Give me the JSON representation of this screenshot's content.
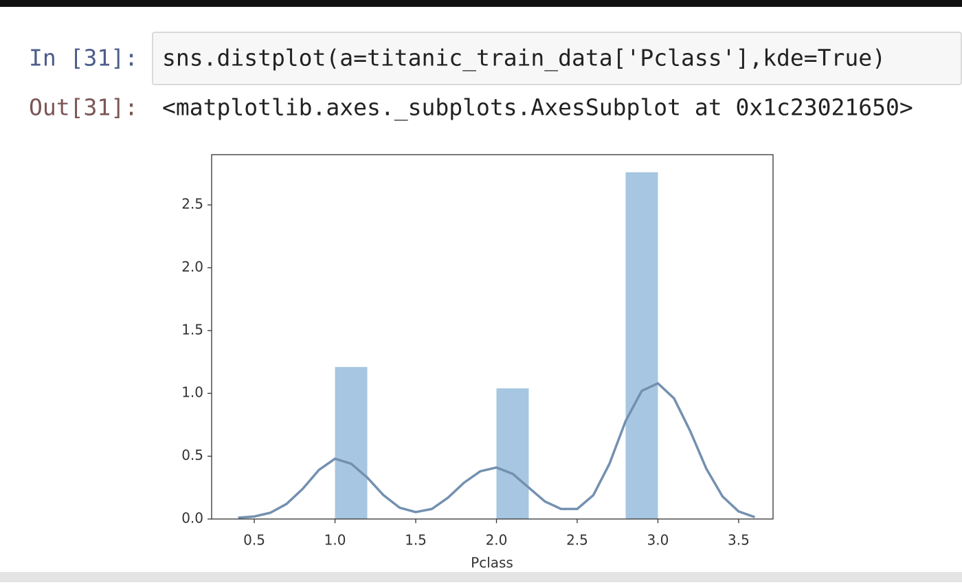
{
  "notebook": {
    "input_prompt": "In [31]:",
    "code": "sns.distplot(a=titanic_train_data['Pclass'],kde=True)",
    "output_prompt": "Out[31]:",
    "output_text": "<matplotlib.axes._subplots.AxesSubplot at 0x1c23021650>"
  },
  "chart_data": {
    "type": "histogram",
    "xlabel": "Pclass",
    "bins": [
      1.0,
      1.2,
      1.4,
      1.6,
      1.8,
      2.0,
      2.2,
      2.4,
      2.6,
      2.8,
      3.0
    ],
    "values": [
      1.21,
      0,
      0,
      0,
      0,
      1.04,
      0,
      0,
      0,
      2.76
    ],
    "color": "#a6c6e1",
    "kde": {
      "color": "#7390b0",
      "x": [
        0.4,
        0.5,
        0.6,
        0.7,
        0.8,
        0.9,
        1.0,
        1.1,
        1.2,
        1.3,
        1.4,
        1.5,
        1.6,
        1.7,
        1.8,
        1.9,
        2.0,
        2.1,
        2.2,
        2.3,
        2.4,
        2.5,
        2.6,
        2.7,
        2.8,
        2.9,
        3.0,
        3.1,
        3.2,
        3.3,
        3.4,
        3.5,
        3.6
      ],
      "values": [
        0.01,
        0.02,
        0.05,
        0.12,
        0.24,
        0.39,
        0.48,
        0.44,
        0.33,
        0.19,
        0.09,
        0.055,
        0.08,
        0.17,
        0.29,
        0.38,
        0.41,
        0.36,
        0.25,
        0.14,
        0.08,
        0.08,
        0.19,
        0.44,
        0.78,
        1.02,
        1.08,
        0.96,
        0.7,
        0.4,
        0.18,
        0.06,
        0.015
      ]
    },
    "xlim": [
      0.236,
      3.713
    ],
    "ylim": [
      0,
      2.9
    ],
    "xticks": [
      0.5,
      {
        "value": 1,
        "label": "1.0"
      },
      1.5,
      {
        "value": 2,
        "label": "2.0"
      },
      2.5,
      {
        "value": 3,
        "label": "3.0"
      },
      3.5
    ],
    "yticks": [
      {
        "value": 0,
        "label": "0.0"
      },
      0.5,
      {
        "value": 1,
        "label": "1.0"
      },
      1.5,
      {
        "value": 2,
        "label": "2.0"
      },
      2.5
    ],
    "grid": false
  }
}
